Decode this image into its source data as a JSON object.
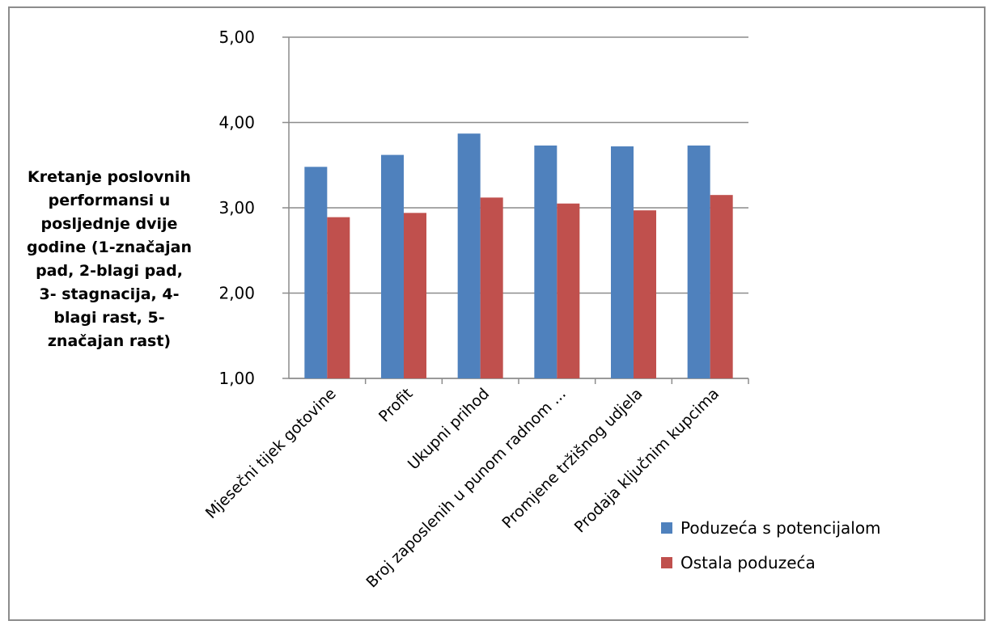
{
  "chart_data": {
    "type": "bar",
    "ylabel": "Kretanje poslovnih performansi u posljednje dvije godine (1-značajan pad, 2-blagi pad, 3- stagnacija, 4-blagi rast, 5-značajan rast)",
    "ylabel_lines": [
      "Kretanje poslovnih",
      "performansi u",
      "posljednje dvije",
      "godine (1-značajan",
      "pad, 2-blagi pad,",
      "3- stagnacija, 4-",
      "blagi rast, 5-",
      "značajan rast)"
    ],
    "ylim": [
      1,
      5
    ],
    "yticks": [
      "1,00",
      "2,00",
      "3,00",
      "4,00",
      "5,00"
    ],
    "grid": true,
    "legend_position": "bottom-right",
    "categories": [
      "Mjesečni tijek gotovine",
      "Profit",
      "Ukupni prihod",
      "Broj zaposlenih u punom radnom ...",
      "Promjene tržišnog udjela",
      "Prodaja ključnim kupcima"
    ],
    "series": [
      {
        "name": "Poduzeća s potencijalom",
        "color": "#4f81bd",
        "values": [
          3.48,
          3.62,
          3.87,
          3.73,
          3.72,
          3.73
        ]
      },
      {
        "name": "Ostala poduzeća",
        "color": "#c0504d",
        "values": [
          2.89,
          2.94,
          3.12,
          3.05,
          2.97,
          3.15
        ]
      }
    ]
  }
}
